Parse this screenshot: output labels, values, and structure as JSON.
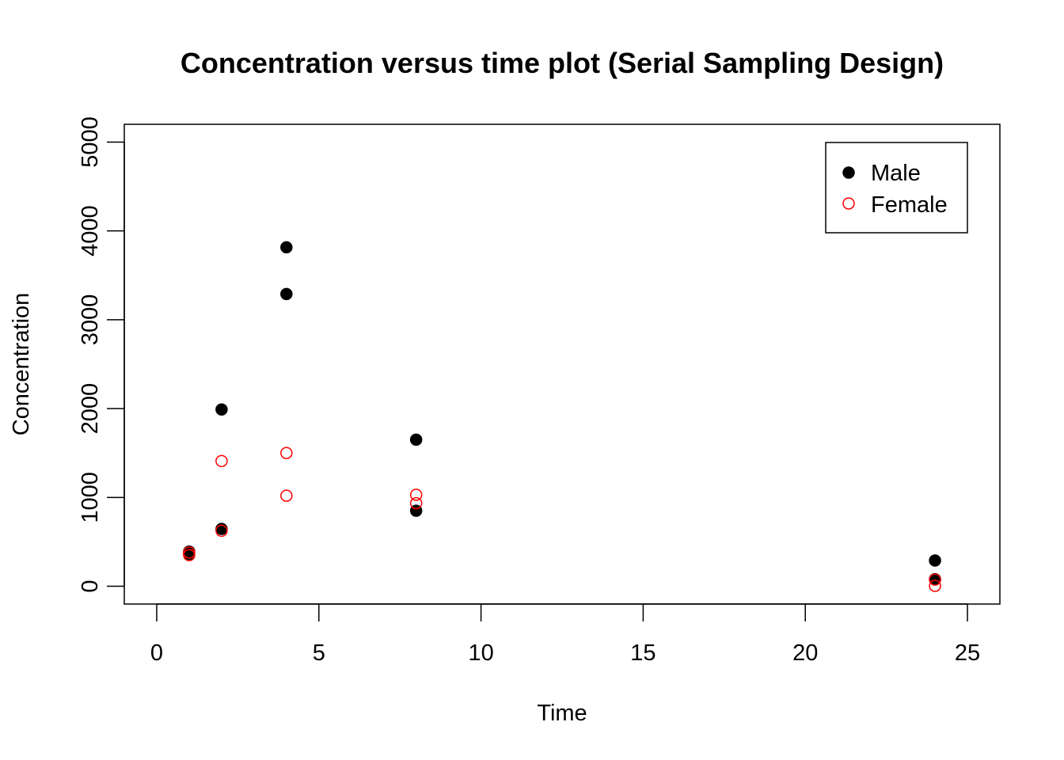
{
  "chart_data": {
    "type": "scatter",
    "title": "Concentration versus time plot (Serial Sampling Design)",
    "xlabel": "Time",
    "ylabel": "Concentration",
    "xlim": [
      -1,
      26
    ],
    "ylim": [
      -200,
      5200
    ],
    "x_ticks": [
      0,
      5,
      10,
      15,
      20,
      25
    ],
    "y_ticks": [
      0,
      1000,
      2000,
      3000,
      4000,
      5000
    ],
    "x_tick_labels": [
      "0",
      "5",
      "10",
      "15",
      "20",
      "25"
    ],
    "y_tick_labels": [
      "0",
      "1000",
      "2000",
      "3000",
      "4000",
      "5000"
    ],
    "grid": false,
    "legend_position": "top-right",
    "series": [
      {
        "name": "Male",
        "color": "#000000",
        "marker": "filled-circle",
        "x": [
          1,
          1,
          2,
          2,
          4,
          4,
          8,
          8,
          24,
          24
        ],
        "y": [
          390,
          365,
          1990,
          645,
          3815,
          3290,
          1650,
          850,
          290,
          80
        ]
      },
      {
        "name": "Female",
        "color": "#ff0000",
        "marker": "open-circle",
        "x": [
          1,
          1,
          2,
          2,
          4,
          4,
          8,
          8,
          24,
          24
        ],
        "y": [
          380,
          350,
          1410,
          625,
          1500,
          1020,
          1030,
          935,
          75,
          5
        ]
      }
    ]
  }
}
